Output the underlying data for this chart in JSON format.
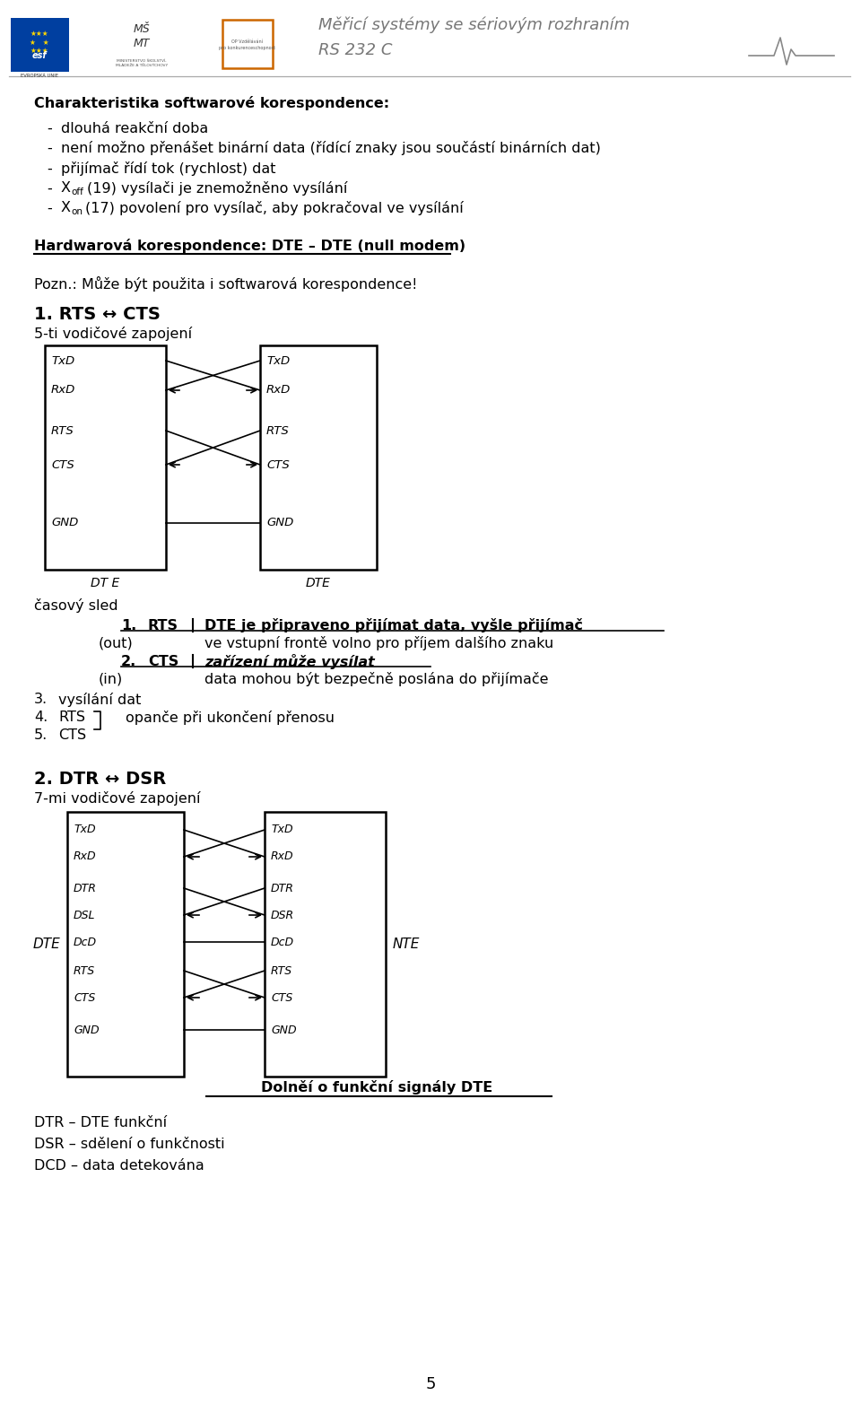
{
  "header_right_1": "Měřicí systémy se sériovým rozhraním",
  "header_right_2": "RS 232 C",
  "sw_title": "Charakteristika softwarové korespondence:",
  "bullet1": "dlouhá reakční doba",
  "bullet2": "není možno přenášet binární data (řídící znaky jsou součástí binárních dat)",
  "bullet3": "přijímač řídí tok (rychlost) dat",
  "bullet4_pre": "X",
  "bullet4_sub": "off",
  "bullet4_post": "(19) vysílači je znemožněno vysílání",
  "bullet5_pre": "X",
  "bullet5_sub": "on",
  "bullet5_post": "(17) povolení pro vysílač, aby pokračoval ve vysílání",
  "hw_title": "Hardwarová korespondence: DTE – DTE (null modem)",
  "pozn": "Pozn.: Může být použita i softwarová korespondence!",
  "rts_cts_title": "1. RTS ↔ CTS",
  "rts_cts_sub": "5-ti vodičové zapojení",
  "signals5_left": [
    "TxD",
    "RxD",
    "RTS",
    "CTS",
    "GND"
  ],
  "signals5_right": [
    "TxD",
    "RxD",
    "RTS",
    "CTS",
    "GND"
  ],
  "casovy_sled": "časový sled",
  "out_label": "(out)",
  "in_label": "(in)",
  "step1_num": "1.",
  "step1_signal": "RTS",
  "step1_desc1": "DTE je připraveno přijímat data, vyšle přijímač",
  "step1_desc2": "ve vstupní frontě volno pro příjem dalšího znaku",
  "step2_num": "2.",
  "step2_signal": "CTS",
  "step2_desc1": "zařízení může vysílat",
  "step2_desc2": "data mohou být bezpečně poslána do přijímače",
  "step3_num": "3.",
  "step3_text": "vysílání dat",
  "step4_num": "4.",
  "step4_signal": "RTS",
  "step4_desc": "opanče při ukončení přenosu",
  "step5_num": "5.",
  "step5_signal": "CTS",
  "dtr_dsr_title": "2. DTR ↔ DSR",
  "dtr_dsr_sub": "7-mi vodičové zapojení",
  "signals7_left": [
    "TxD",
    "RxD",
    "DTR",
    "DSL",
    "DcD",
    "RTS",
    "CTS",
    "GND"
  ],
  "signals7_right": [
    "TxD",
    "RxD",
    "DTR",
    "DSR",
    "DcD",
    "RTS",
    "CTS",
    "GND"
  ],
  "dte_label": "DTE",
  "nte_label": "NTE",
  "doplneni": "Dolněí o funkční signály DTE",
  "footer1": "DTR – DTE funkční",
  "footer2": "DSR – sdělení o funkčnosti",
  "footer3": "DCD – data detekována",
  "page": "5"
}
